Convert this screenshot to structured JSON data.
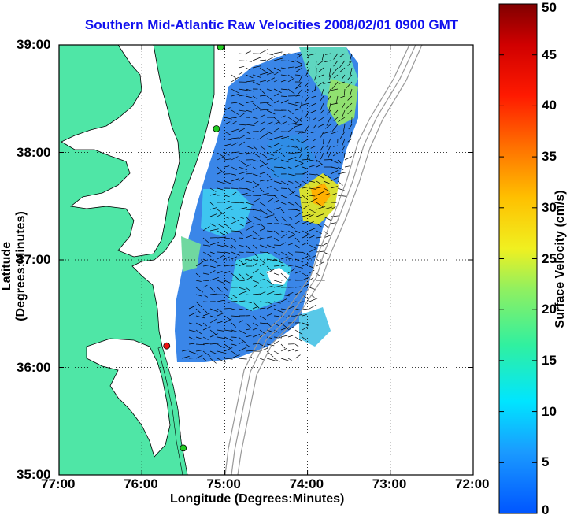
{
  "title": "Southern Mid-Atlantic Raw Velocities 2008/02/01 0900 GMT",
  "xlabel": "Longitude (Degrees:Minutes)",
  "ylabel": "Latitude (Degrees:Minutes)",
  "colorbar_label": "Surface Velocity (cm/s)",
  "x_ticks": [
    "77:00",
    "76:00",
    "75:00",
    "74:00",
    "73:00",
    "72:00"
  ],
  "y_ticks": [
    "39:00",
    "38:00",
    "37:00",
    "36:00",
    "35:00"
  ],
  "colorbar_ticks": [
    "0",
    "5",
    "10",
    "15",
    "20",
    "25",
    "30",
    "35",
    "40",
    "45",
    "50"
  ],
  "colors": {
    "land": "#4fe6a6",
    "title": "#1010ee",
    "bathymetry": "#999999",
    "station_green": "#22cc22",
    "station_red": "#ee1111"
  },
  "chart_data": {
    "type": "heatmap",
    "xlim": [
      -77,
      -72
    ],
    "ylim": [
      35,
      39
    ],
    "colorbar_range": [
      0,
      50
    ],
    "grid": true,
    "stations": [
      {
        "lon": -75.05,
        "lat": 38.98,
        "color": "green"
      },
      {
        "lon": -75.1,
        "lat": 38.22,
        "color": "green"
      },
      {
        "lon": -75.7,
        "lat": 36.2,
        "color": "red"
      },
      {
        "lon": -75.5,
        "lat": 35.25,
        "color": "green"
      }
    ]
  }
}
